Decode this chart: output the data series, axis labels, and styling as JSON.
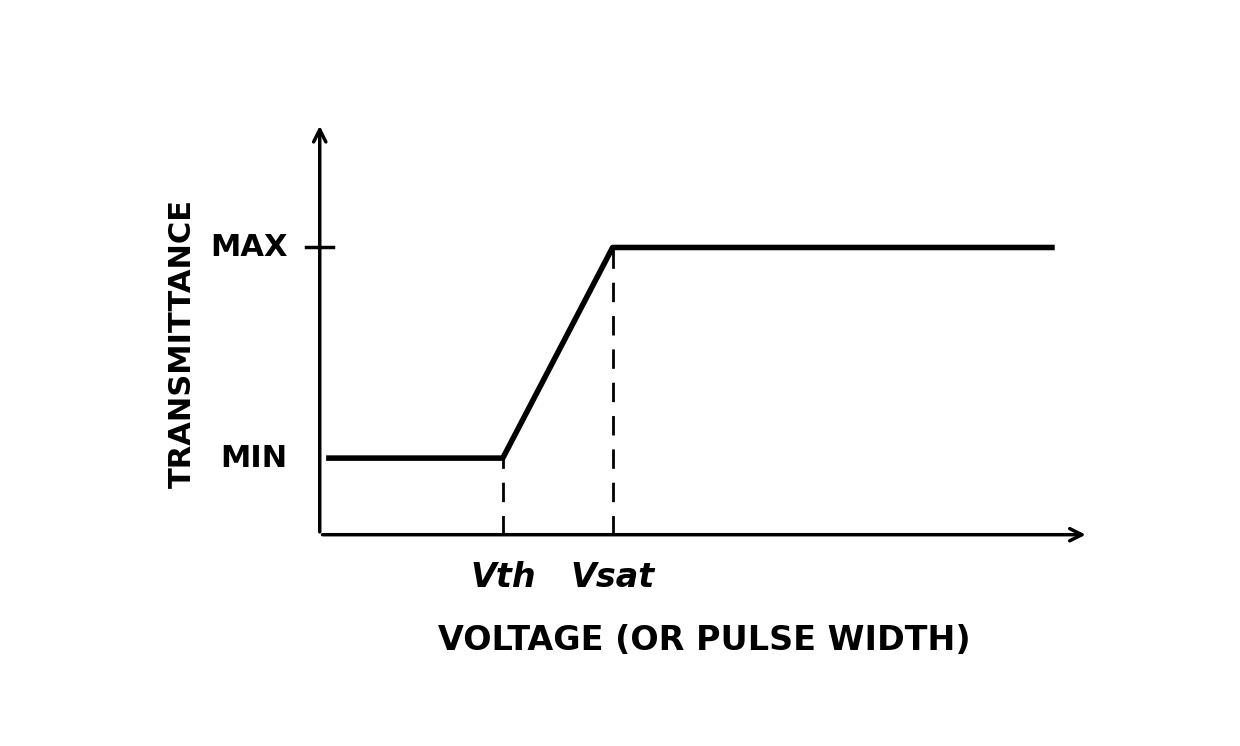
{
  "background_color": "#ffffff",
  "line_color": "#000000",
  "line_width": 4.0,
  "dashed_line_color": "#000000",
  "vth_x": 3.8,
  "vsat_x": 5.0,
  "min_y": 2.8,
  "max_y": 7.2,
  "xlim": [
    0.0,
    10.5
  ],
  "ylim": [
    -1.5,
    10.5
  ],
  "ylabel_text": "TRANSMITTANCE",
  "xlabel_text": "VOLTAGE (OR PULSE WIDTH)",
  "max_label": "MAX",
  "min_label": "MIN",
  "vth_label": "Vth",
  "vsat_label": "Vsat",
  "ax_origin_x": 1.8,
  "ax_origin_y": 1.2,
  "ax_end_x": 10.2,
  "ax_end_y": 9.8,
  "curve_start_x": 1.9,
  "curve_end_x": 9.8,
  "ylabel_fontsize": 22,
  "xlabel_fontsize": 24,
  "tick_label_fontsize": 22,
  "annotation_fontsize": 24,
  "arrow_lw": 2.5,
  "arrow_mutation": 22
}
